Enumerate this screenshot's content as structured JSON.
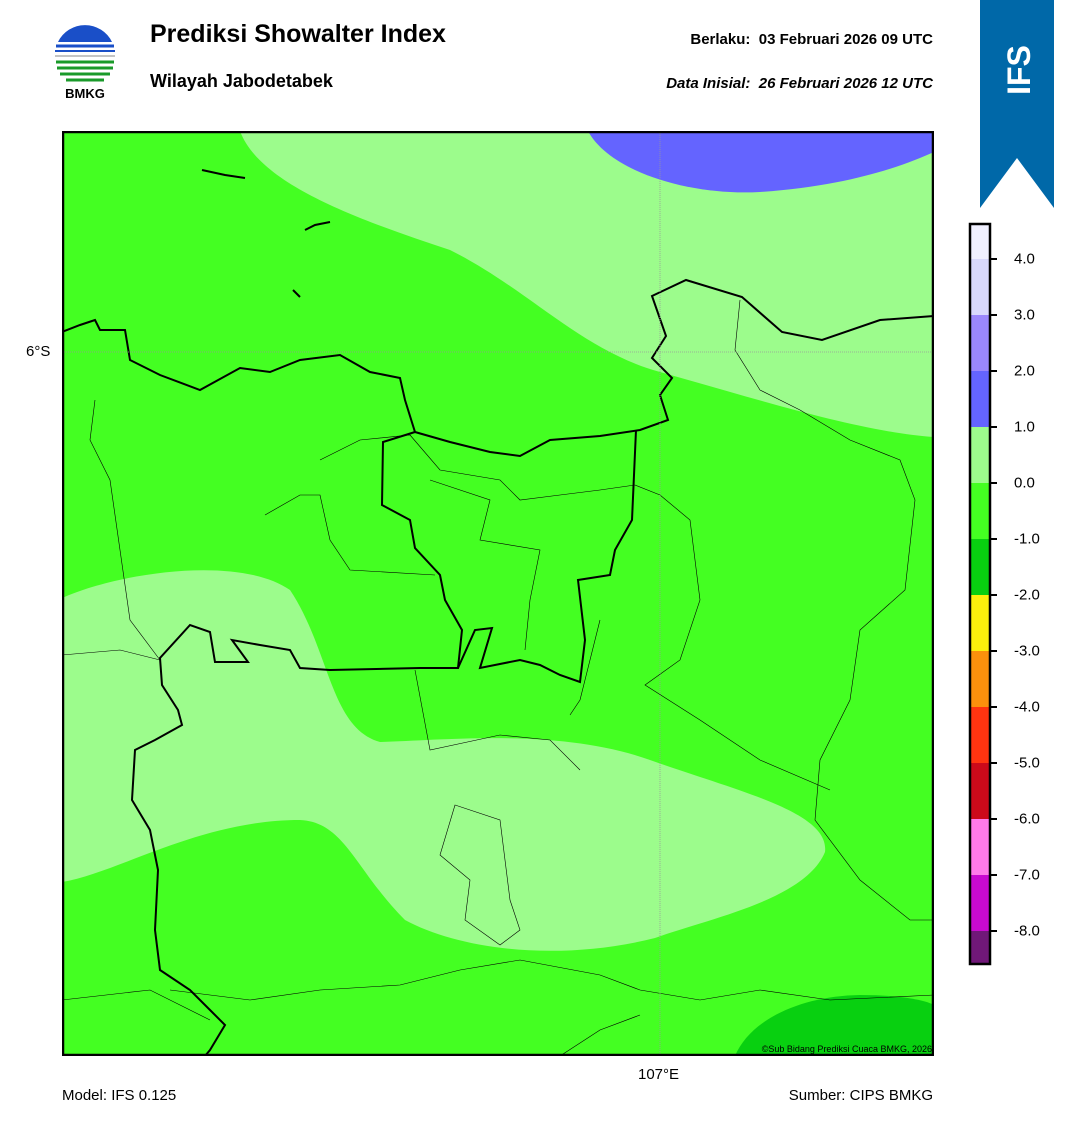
{
  "header": {
    "logo_text": "BMKG",
    "title": "Prediksi Showalter Index",
    "subtitle": "Wilayah Jabodetabek",
    "valid_label": "Berlaku:",
    "valid_value": "03 Februari 2026 09 UTC",
    "init_label": "Data Inisial:",
    "init_value": "26 Februari 2026 12 UTC",
    "ribbon_text": "IFS",
    "ribbon_color": "#0068a8"
  },
  "map": {
    "lat_label": "6°S",
    "lon_label": "107°E",
    "copyright": "©Sub Bidang Prediksi Cuaca BMKG, 2026",
    "field_colors": {
      "light_green": "#9cfc8c",
      "green": "#44ff22",
      "dark_green": "#08d010",
      "blue": "#6464ff"
    }
  },
  "colorbar": {
    "ticks": [
      "4.0",
      "3.0",
      "2.0",
      "1.0",
      "0.0",
      "-1.0",
      "-2.0",
      "-3.0",
      "-4.0",
      "-5.0",
      "-6.0",
      "-7.0",
      "-8.0"
    ],
    "colors": [
      "#f0f0ff",
      "#d8d8fc",
      "#9b87fb",
      "#6464ff",
      "#9cfc8c",
      "#44ff22",
      "#08d010",
      "#fcf00c",
      "#fc900c",
      "#ff3410",
      "#cc0a1a",
      "#ff7aea",
      "#c80ad0",
      "#701878"
    ]
  },
  "footer": {
    "model": "Model: IFS 0.125",
    "source": "Sumber: CIPS BMKG"
  }
}
